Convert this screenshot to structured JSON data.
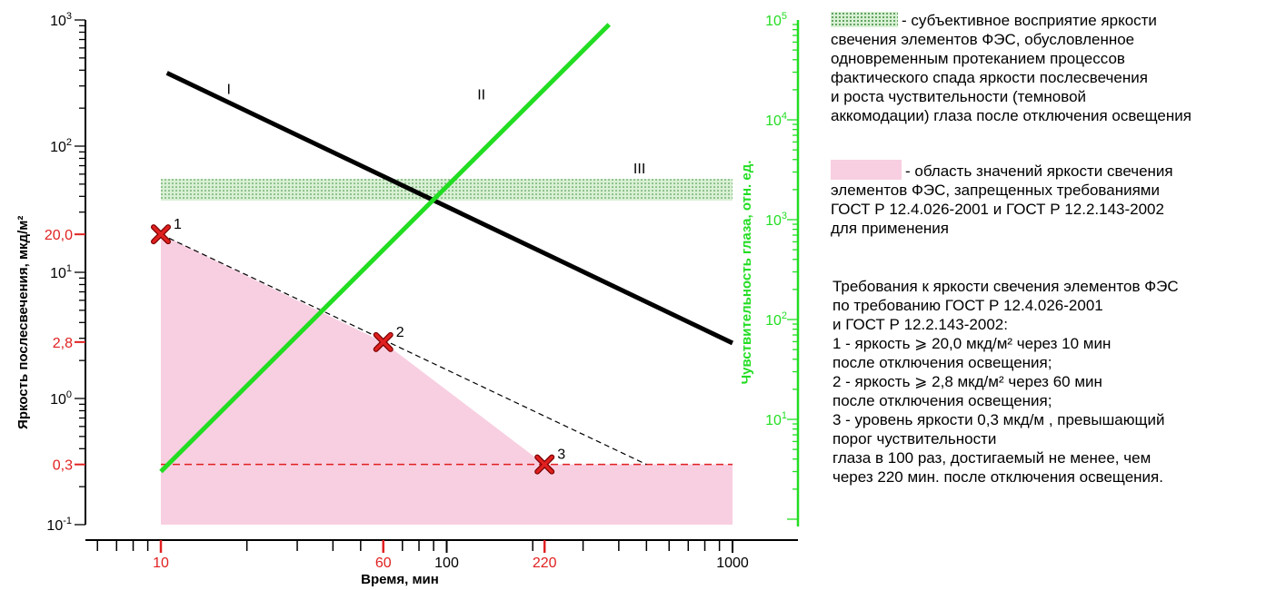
{
  "chart_data": {
    "type": "line",
    "x_scale": "log",
    "xlabel": "Время, мин",
    "xlim": [
      2.5,
      2000
    ],
    "x_tick_labels": [
      "10",
      "100",
      "1000"
    ],
    "x_red_tick_labels": [
      "60",
      "220"
    ],
    "left_axis": {
      "label": "Яркость послесвечения, мкд/м²",
      "scale": "log",
      "ylim": [
        0.1,
        1000
      ],
      "tick_labels": [
        {
          "value": 1000,
          "base": "10",
          "exp": "3"
        },
        {
          "value": 100,
          "base": "10",
          "exp": "2"
        },
        {
          "value": 10,
          "base": "10",
          "exp": "1"
        },
        {
          "value": 1,
          "base": "10",
          "exp": "0"
        },
        {
          "value": 0.1,
          "base": "10",
          "exp": "-1"
        }
      ],
      "red_tick_labels": [
        {
          "value": 20,
          "text": "20,0"
        },
        {
          "value": 2.8,
          "text": "2,8"
        },
        {
          "value": 0.3,
          "text": "0,3"
        }
      ]
    },
    "right_axis": {
      "label": "Чувствительность глаза, отн. ед.",
      "scale": "log",
      "color": "#22dd22",
      "ylim": [
        2,
        100000
      ],
      "tick_labels": [
        {
          "value": 100000,
          "base": "10",
          "exp": "5"
        },
        {
          "value": 10000,
          "base": "10",
          "exp": "4"
        },
        {
          "value": 1000,
          "base": "10",
          "exp": "3"
        },
        {
          "value": 100,
          "base": "10",
          "exp": "2"
        },
        {
          "value": 10,
          "base": "10",
          "exp": "1"
        }
      ]
    },
    "series": [
      {
        "name": "I",
        "axis": "left",
        "color": "#000000",
        "x": [
          10.5,
          1000
        ],
        "y": [
          380,
          2.75
        ]
      },
      {
        "name": "II",
        "axis": "right",
        "color": "#22dd22",
        "x": [
          10,
          370
        ],
        "y": [
          3,
          90000
        ]
      },
      {
        "name": "III",
        "axis": "left",
        "color": "#8fd48f",
        "band": [
          37,
          55
        ],
        "x": [
          10,
          1000
        ]
      }
    ],
    "points": [
      {
        "label": "1",
        "x": 10,
        "y": 20
      },
      {
        "label": "2",
        "x": 60,
        "y": 2.8
      },
      {
        "label": "3",
        "x": 220,
        "y": 0.3
      }
    ],
    "dashed_line": {
      "x": [
        10,
        500
      ],
      "y": [
        20,
        0.3
      ]
    },
    "threshold_line": {
      "y": 0.3,
      "x": [
        10,
        1000
      ],
      "color": "#e02020"
    },
    "shaded_region": {
      "color": "#f8cfe1",
      "x": [
        10,
        60,
        220,
        1000
      ],
      "y_top": [
        20,
        2.8,
        0.3,
        0.3
      ],
      "y_bottom": 0.1
    }
  },
  "legend": {
    "item1": {
      "lines": [
        "- субъективное восприятие яркости",
        "свечения элементов ФЭС, обусловленное",
        "одновременным протеканием процессов",
        "фактического спада яркости послесвечения",
        "и роста чуствительности (темновой",
        "аккомодации) глаза после отключения освещения"
      ]
    },
    "item2": {
      "lines": [
        "- область значений яркости свечения",
        "элементов ФЭС, запрещенных требованиями",
        "ГОСТ Р 12.4.026-2001 и ГОСТ Р 12.2.143-2002",
        "для применения"
      ]
    },
    "requirements": {
      "lines": [
        "Требования к яркости свечения элементов ФЭС",
        "по требованию ГОСТ Р 12.4.026-2001",
        "и ГОСТ Р 12.2.143-2002:",
        "1 - яркость ⩾ 20,0 мкд/м² через 10 мин",
        "после отключения освещения;",
        "2 - яркость ⩾ 2,8 мкд/м² через 60 мин",
        "после отключения освещения;",
        "3 - уровень яркости 0,3 мкд/м , превышающий",
        "порог чуствительности",
        "глаза в 100 раз, достигаемый не менее, чем",
        "через 220 мин. после отключения освещения."
      ]
    }
  },
  "colors": {
    "red": "#e02020",
    "green": "#22dd22",
    "pink": "#f8cfe1",
    "band": "#d8f0d4"
  }
}
